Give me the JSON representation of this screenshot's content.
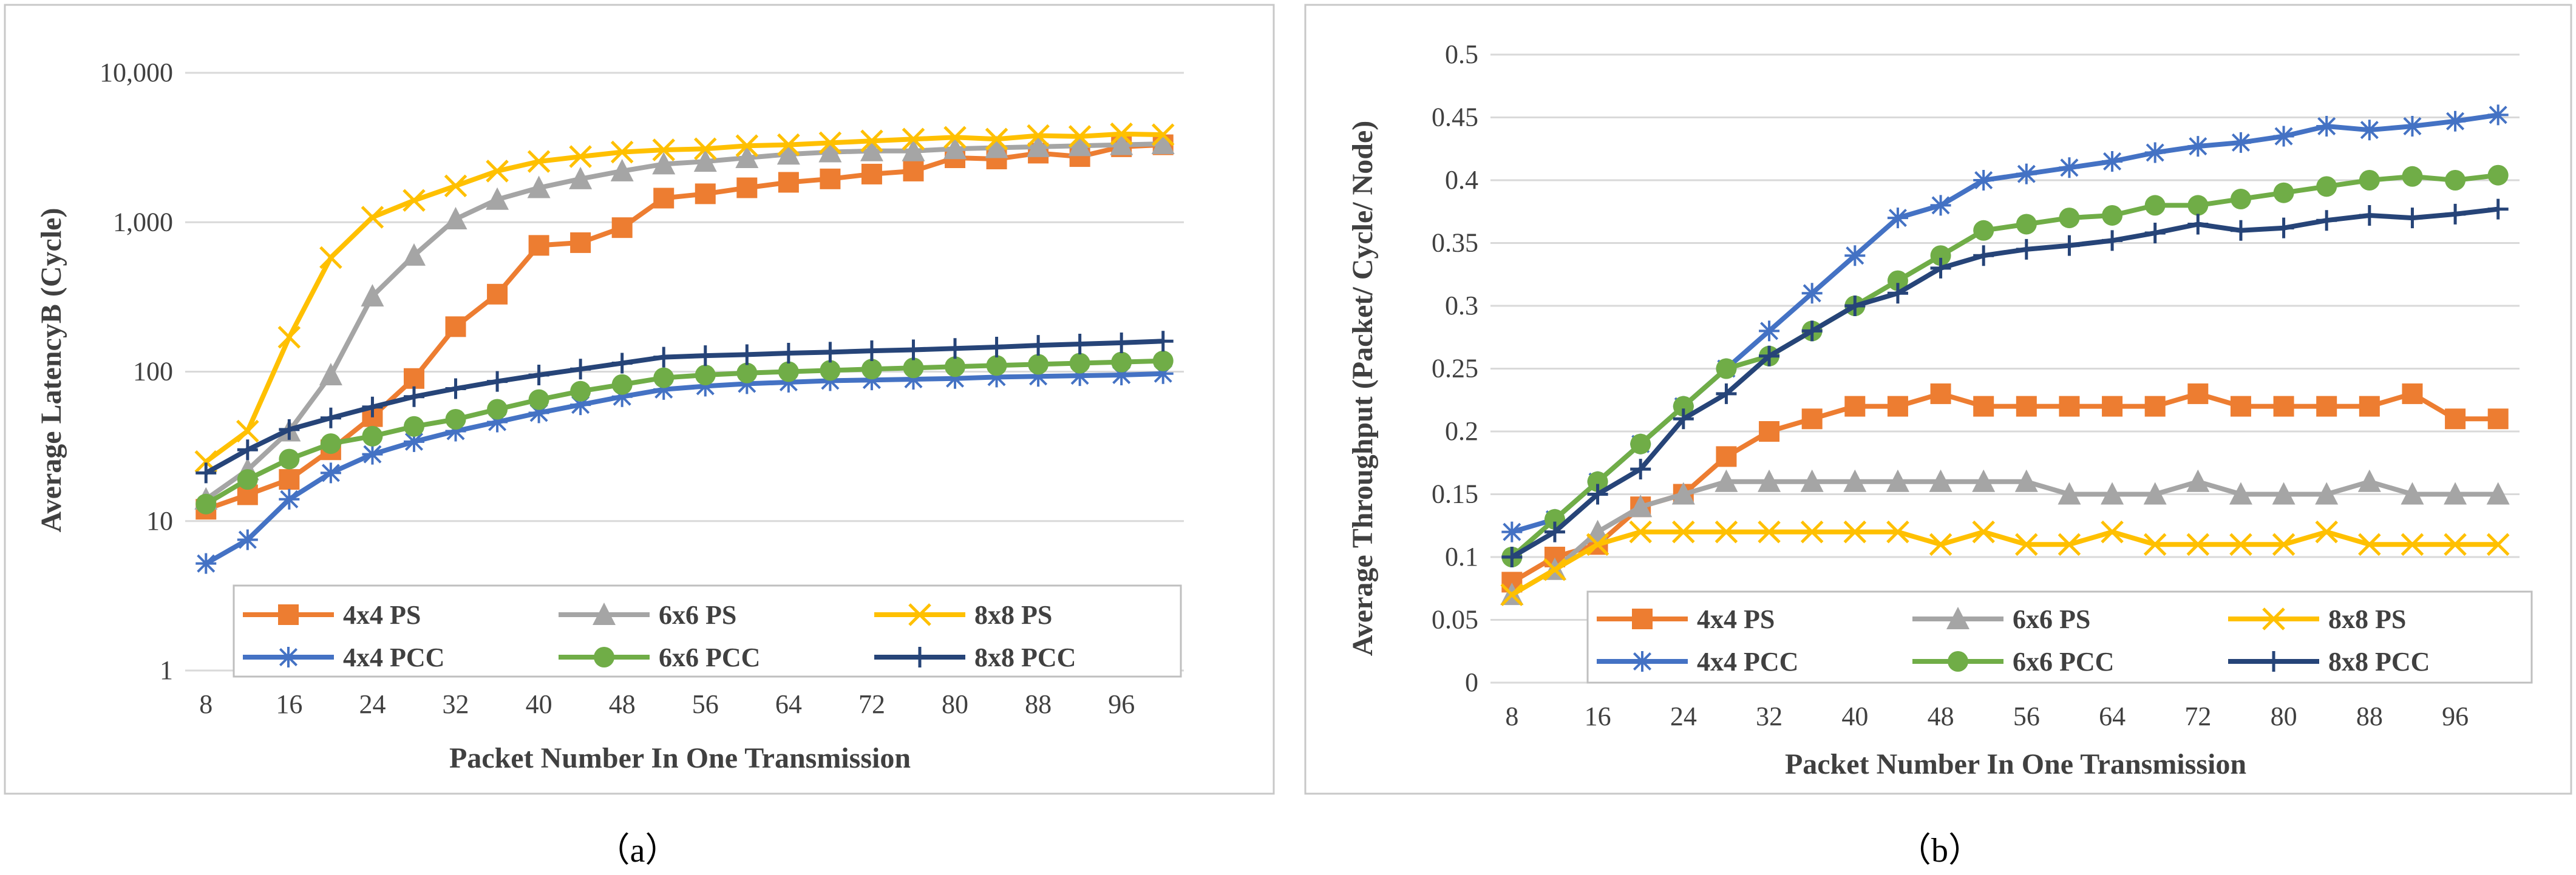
{
  "chart_data": [
    {
      "panel": "a",
      "type": "line",
      "scale": "log",
      "caption": "（a）",
      "xlabel": "Packet Number In One Transmission",
      "ylabel": "Average LatencyB (Cycle)",
      "ylim": [
        1,
        10000
      ],
      "yticks": [
        1,
        10,
        100,
        1000,
        10000
      ],
      "ytick_labels": [
        "1",
        "10",
        "100",
        "1,000",
        "10,000"
      ],
      "xlim": [
        6,
        102
      ],
      "xticks": [
        8,
        16,
        24,
        32,
        40,
        48,
        56,
        64,
        72,
        80,
        88,
        96
      ],
      "xtick_labels": [
        "8",
        "16",
        "24",
        "32",
        "40",
        "48",
        "56",
        "64",
        "72",
        "80",
        "88",
        "96"
      ],
      "grid": "horizontal",
      "legend_position": "bottom",
      "x": [
        8,
        12,
        16,
        20,
        24,
        28,
        32,
        36,
        40,
        44,
        48,
        52,
        56,
        60,
        64,
        68,
        72,
        76,
        80,
        84,
        88,
        92,
        96,
        100
      ],
      "series": [
        {
          "name": "4x4 PS",
          "color": "#ED7D31",
          "marker": "square",
          "values": [
            12,
            15,
            19,
            30,
            50,
            90,
            200,
            330,
            700,
            730,
            920,
            1450,
            1550,
            1700,
            1850,
            1950,
            2100,
            2200,
            2700,
            2650,
            2900,
            2750,
            3200,
            3300
          ]
        },
        {
          "name": "6x6 PS",
          "color": "#A5A5A5",
          "marker": "triangle",
          "values": [
            14,
            22,
            40,
            95,
            320,
            600,
            1050,
            1420,
            1700,
            1950,
            2200,
            2450,
            2550,
            2700,
            2850,
            2950,
            3000,
            3000,
            3100,
            3150,
            3200,
            3250,
            3300,
            3350
          ]
        },
        {
          "name": "8x8 PS",
          "color": "#FFC000",
          "marker": "x",
          "values": [
            25,
            40,
            170,
            580,
            1080,
            1400,
            1750,
            2200,
            2550,
            2750,
            2950,
            3050,
            3100,
            3250,
            3300,
            3400,
            3500,
            3600,
            3700,
            3600,
            3800,
            3750,
            3900,
            3850
          ]
        },
        {
          "name": "4x4 PCC",
          "color": "#4472C4",
          "marker": "asterisk",
          "values": [
            5.2,
            7.5,
            14,
            21,
            28,
            34,
            40,
            46,
            53,
            60,
            68,
            76,
            80,
            83,
            85,
            87,
            88,
            89,
            90,
            92,
            93,
            94,
            95,
            97
          ]
        },
        {
          "name": "6x6 PCC",
          "color": "#70AD47",
          "marker": "circle",
          "values": [
            13,
            19,
            26,
            33,
            37,
            43,
            48,
            56,
            65,
            74,
            82,
            91,
            95,
            98,
            100,
            102,
            104,
            106,
            108,
            110,
            112,
            114,
            116,
            118
          ]
        },
        {
          "name": "8x8 PCC",
          "color": "#264478",
          "marker": "plus",
          "values": [
            21,
            30,
            41,
            49,
            58,
            68,
            77,
            86,
            95,
            104,
            114,
            125,
            128,
            130,
            133,
            135,
            138,
            140,
            143,
            146,
            150,
            153,
            156,
            160
          ]
        }
      ]
    },
    {
      "panel": "b",
      "type": "line",
      "scale": "linear",
      "caption": "（b）",
      "xlabel": "Packet Number In One Transmission",
      "ylabel": "Average Throughput (Packet/ Cycle/ Node)",
      "ylim": [
        0,
        0.5
      ],
      "yticks": [
        0,
        0.05,
        0.1,
        0.15,
        0.2,
        0.25,
        0.3,
        0.35,
        0.4,
        0.45,
        0.5
      ],
      "ytick_labels": [
        "0",
        "0.05",
        "0.1",
        "0.15",
        "0.2",
        "0.25",
        "0.3",
        "0.35",
        "0.4",
        "0.45",
        "0.5"
      ],
      "xlim": [
        6,
        102
      ],
      "xticks": [
        8,
        16,
        24,
        32,
        40,
        48,
        56,
        64,
        72,
        80,
        88,
        96
      ],
      "xtick_labels": [
        "8",
        "16",
        "24",
        "32",
        "40",
        "48",
        "56",
        "64",
        "72",
        "80",
        "88",
        "96"
      ],
      "grid": "horizontal",
      "legend_position": "bottom",
      "x": [
        8,
        12,
        16,
        20,
        24,
        28,
        32,
        36,
        40,
        44,
        48,
        52,
        56,
        60,
        64,
        68,
        72,
        76,
        80,
        84,
        88,
        92,
        96,
        100
      ],
      "series": [
        {
          "name": "4x4 PS",
          "color": "#ED7D31",
          "marker": "square",
          "values": [
            0.08,
            0.1,
            0.11,
            0.14,
            0.15,
            0.18,
            0.2,
            0.21,
            0.22,
            0.22,
            0.23,
            0.22,
            0.22,
            0.22,
            0.22,
            0.22,
            0.23,
            0.22,
            0.22,
            0.22,
            0.22,
            0.23,
            0.21,
            0.21
          ]
        },
        {
          "name": "6x6 PS",
          "color": "#A5A5A5",
          "marker": "triangle",
          "values": [
            0.07,
            0.09,
            0.12,
            0.14,
            0.15,
            0.16,
            0.16,
            0.16,
            0.16,
            0.16,
            0.16,
            0.16,
            0.16,
            0.15,
            0.15,
            0.15,
            0.16,
            0.15,
            0.15,
            0.15,
            0.16,
            0.15,
            0.15,
            0.15
          ]
        },
        {
          "name": "8x8 PS",
          "color": "#FFC000",
          "marker": "x",
          "values": [
            0.07,
            0.09,
            0.11,
            0.12,
            0.12,
            0.12,
            0.12,
            0.12,
            0.12,
            0.12,
            0.11,
            0.12,
            0.11,
            0.11,
            0.12,
            0.11,
            0.11,
            0.11,
            0.11,
            0.12,
            0.11,
            0.11,
            0.11,
            0.11
          ]
        },
        {
          "name": "4x4 PCC",
          "color": "#4472C4",
          "marker": "asterisk",
          "values": [
            0.12,
            0.13,
            0.16,
            0.19,
            0.22,
            0.25,
            0.28,
            0.31,
            0.34,
            0.37,
            0.38,
            0.4,
            0.405,
            0.41,
            0.415,
            0.422,
            0.427,
            0.43,
            0.435,
            0.443,
            0.44,
            0.443,
            0.447,
            0.452
          ]
        },
        {
          "name": "6x6 PCC",
          "color": "#70AD47",
          "marker": "circle",
          "values": [
            0.1,
            0.13,
            0.16,
            0.19,
            0.22,
            0.25,
            0.26,
            0.28,
            0.3,
            0.32,
            0.34,
            0.36,
            0.365,
            0.37,
            0.372,
            0.38,
            0.38,
            0.385,
            0.39,
            0.395,
            0.4,
            0.403,
            0.4,
            0.404
          ]
        },
        {
          "name": "8x8 PCC",
          "color": "#264478",
          "marker": "plus",
          "values": [
            0.1,
            0.12,
            0.15,
            0.17,
            0.21,
            0.23,
            0.26,
            0.28,
            0.3,
            0.31,
            0.33,
            0.34,
            0.345,
            0.348,
            0.352,
            0.358,
            0.365,
            0.36,
            0.362,
            0.368,
            0.372,
            0.37,
            0.373,
            0.377
          ]
        }
      ]
    }
  ]
}
